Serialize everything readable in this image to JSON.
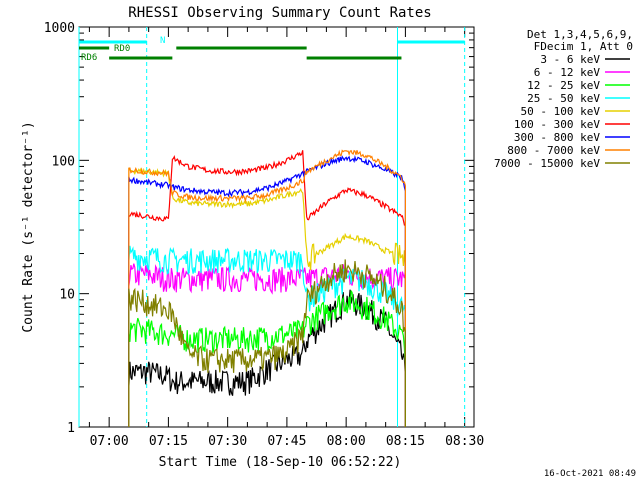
{
  "chart_data": {
    "type": "line",
    "title": "RHESSI Observing Summary Count Rates",
    "xlabel": "Start Time (18-Sep-10 06:52:22)",
    "ylabel": "Count Rate (s⁻¹ detector⁻¹)",
    "yscale": "log",
    "ylim": [
      1,
      1000
    ],
    "xlim": [
      "06:52:22",
      "08:32:22"
    ],
    "x_ticks": [
      "07:00",
      "07:15",
      "07:30",
      "07:45",
      "08:00",
      "08:15",
      "08:30"
    ],
    "y_ticks": [
      "1",
      "10",
      "100",
      "1000"
    ],
    "grid": false,
    "legend_placement": "right",
    "legend_header": [
      "Det 1,3,4,5,6,9,",
      "FDecim 1, Att 0"
    ],
    "footer_timestamp": "16-Oct-2021 08:49",
    "time_axis": [
      "07:05",
      "07:10",
      "07:15",
      "07:16",
      "07:20",
      "07:25",
      "07:30",
      "07:35",
      "07:40",
      "07:45",
      "07:49",
      "07:50",
      "07:55",
      "08:00",
      "08:05",
      "08:10",
      "08:14",
      "08:15"
    ],
    "series": [
      {
        "name": "3 - 6 keV",
        "color": "#000000",
        "values": [
          2.6,
          2.6,
          2.4,
          2.2,
          2.2,
          2.2,
          2.2,
          2.2,
          2.7,
          3.2,
          3.5,
          4.5,
          6.5,
          9,
          8,
          6,
          3.5,
          2.5
        ]
      },
      {
        "name": "6 - 12 keV",
        "color": "#ff00ff",
        "values": [
          14,
          14,
          13,
          13,
          13,
          13,
          13,
          13,
          13,
          13,
          13,
          13,
          13.5,
          14,
          13.5,
          13,
          13,
          12.5
        ]
      },
      {
        "name": "12 - 25 keV",
        "color": "#00ff00",
        "values": [
          5.5,
          5.3,
          5,
          5,
          4.6,
          4.6,
          4.6,
          4.6,
          4.8,
          5,
          5.3,
          6,
          7.5,
          9,
          8,
          6.5,
          5,
          3.5
        ]
      },
      {
        "name": "25 - 50 keV",
        "color": "#00ffff",
        "values": [
          19,
          19,
          18,
          18,
          18,
          18,
          18,
          18,
          18,
          18,
          18,
          9,
          11,
          13,
          12.5,
          10,
          8,
          7
        ]
      },
      {
        "name": "50 - 100 keV",
        "color": "#e6d000",
        "values": [
          84,
          82,
          80,
          52,
          48,
          47,
          47,
          47,
          50,
          55,
          60,
          18,
          22,
          27,
          25,
          21,
          19,
          17
        ]
      },
      {
        "name": "100 - 300 keV",
        "color": "#ff0000",
        "values": [
          40,
          38,
          36,
          105,
          90,
          84,
          82,
          83,
          88,
          100,
          115,
          36,
          48,
          60,
          55,
          45,
          38,
          33
        ]
      },
      {
        "name": "300 - 800 keV",
        "color": "#0000ff",
        "values": [
          72,
          68,
          65,
          63,
          60,
          58,
          57,
          58,
          62,
          70,
          80,
          82,
          95,
          105,
          98,
          85,
          75,
          58
        ]
      },
      {
        "name": "800 - 7000 keV",
        "color": "#ff8000",
        "values": [
          85,
          82,
          80,
          57,
          53,
          52,
          52,
          52,
          55,
          62,
          70,
          82,
          100,
          118,
          110,
          90,
          75,
          65
        ]
      },
      {
        "name": "7000 - 15000 keV",
        "color": "#808000",
        "values": [
          9.5,
          8.5,
          7.5,
          7,
          3.5,
          3.2,
          3.2,
          3.2,
          3.3,
          3.6,
          5,
          9,
          13,
          15.5,
          14,
          11,
          8,
          5
        ]
      }
    ],
    "annotations": {
      "flags": [
        {
          "label": "N",
          "color": "#00ffff"
        },
        {
          "label": "RD0",
          "color": "#008000"
        },
        {
          "label": "RD6",
          "color": "#008000"
        }
      ]
    }
  }
}
